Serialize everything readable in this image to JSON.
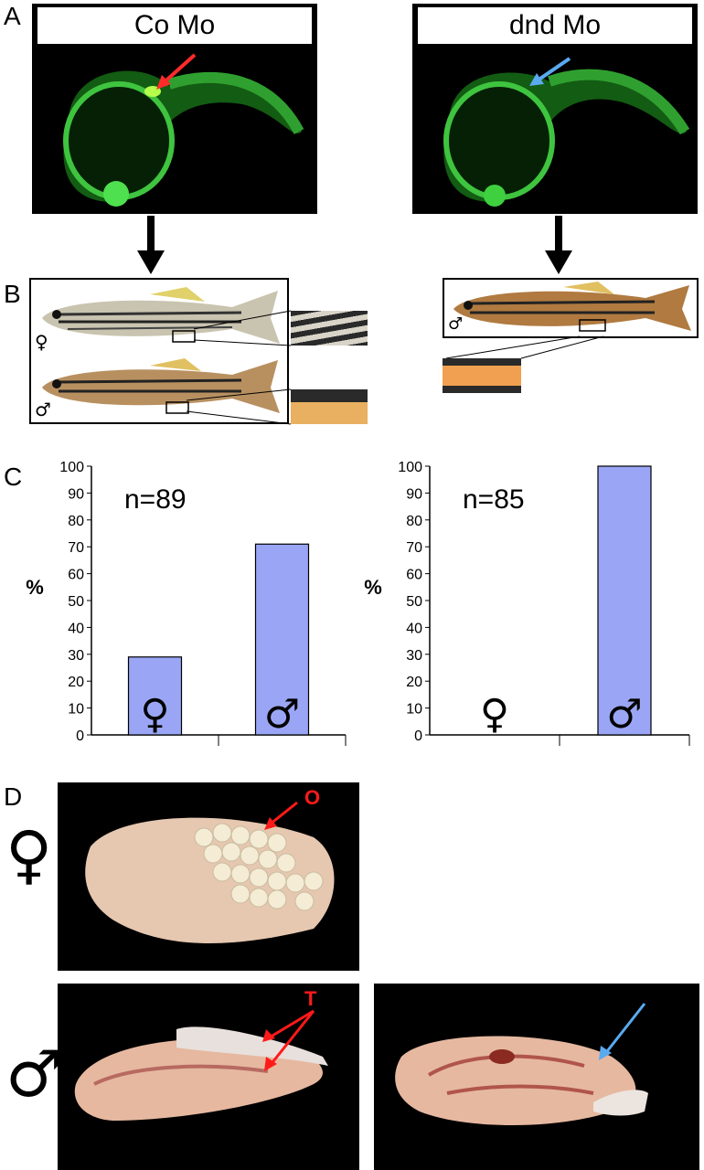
{
  "panels": {
    "a": "A",
    "b": "B",
    "c": "C",
    "d": "D"
  },
  "embryos": {
    "left_label": "Co Mo",
    "right_label": "dnd Mo",
    "left_arrow_color": "#ff2a2a",
    "right_arrow_color": "#5aaaf0"
  },
  "fish": {
    "female_symbol": "♀",
    "male_symbol": "♂"
  },
  "gonads": {
    "female_symbol": "♀",
    "male_symbol": "♂",
    "ovary_label": "O",
    "testis_label": "T"
  },
  "chart_data": [
    {
      "type": "bar",
      "title": "n=89",
      "ylabel": "%",
      "ylim": [
        0,
        100
      ],
      "yticks": [
        "0",
        "10",
        "20",
        "30",
        "40",
        "50",
        "60",
        "70",
        "80",
        "90",
        "100"
      ],
      "categories": [
        "♀",
        "♂"
      ],
      "values": [
        29,
        71
      ],
      "bar_color": "#9aa6f5"
    },
    {
      "type": "bar",
      "title": "n=85",
      "ylabel": "%",
      "ylim": [
        0,
        100
      ],
      "yticks": [
        "0",
        "10",
        "20",
        "30",
        "40",
        "50",
        "60",
        "70",
        "80",
        "90",
        "100"
      ],
      "categories": [
        "♀",
        "♂"
      ],
      "values": [
        0,
        100
      ],
      "bar_color": "#9aa6f5"
    }
  ]
}
